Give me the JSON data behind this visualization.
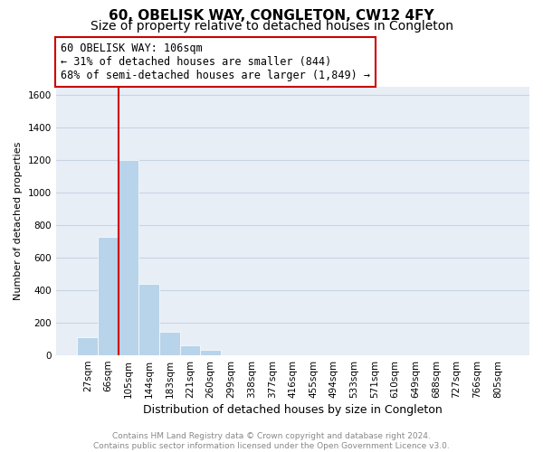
{
  "title": "60, OBELISK WAY, CONGLETON, CW12 4FY",
  "subtitle": "Size of property relative to detached houses in Congleton",
  "xlabel": "Distribution of detached houses by size in Congleton",
  "ylabel": "Number of detached properties",
  "bar_values": [
    110,
    730,
    1200,
    440,
    145,
    60,
    35,
    0,
    0,
    0,
    0,
    0,
    0,
    0,
    0,
    0,
    0,
    0,
    0,
    0,
    0
  ],
  "bar_labels": [
    "27sqm",
    "66sqm",
    "105sqm",
    "144sqm",
    "183sqm",
    "221sqm",
    "260sqm",
    "299sqm",
    "338sqm",
    "377sqm",
    "416sqm",
    "455sqm",
    "494sqm",
    "533sqm",
    "571sqm",
    "610sqm",
    "649sqm",
    "688sqm",
    "727sqm",
    "766sqm",
    "805sqm"
  ],
  "bar_color": "#b8d4ea",
  "property_line_color": "#cc0000",
  "property_line_bar_index": 2,
  "ylim": [
    0,
    1650
  ],
  "yticks": [
    0,
    200,
    400,
    600,
    800,
    1000,
    1200,
    1400,
    1600
  ],
  "annotation_line1": "60 OBELISK WAY: 106sqm",
  "annotation_line2": "← 31% of detached houses are smaller (844)",
  "annotation_line3": "68% of semi-detached houses are larger (1,849) →",
  "grid_color": "#c8d4e4",
  "background_color": "#e8eef6",
  "footer_text": "Contains HM Land Registry data © Crown copyright and database right 2024.\nContains public sector information licensed under the Open Government Licence v3.0.",
  "title_fontsize": 11,
  "subtitle_fontsize": 10,
  "xlabel_fontsize": 9,
  "ylabel_fontsize": 8,
  "tick_fontsize": 7.5,
  "annotation_fontsize": 8.5,
  "footer_fontsize": 6.5
}
